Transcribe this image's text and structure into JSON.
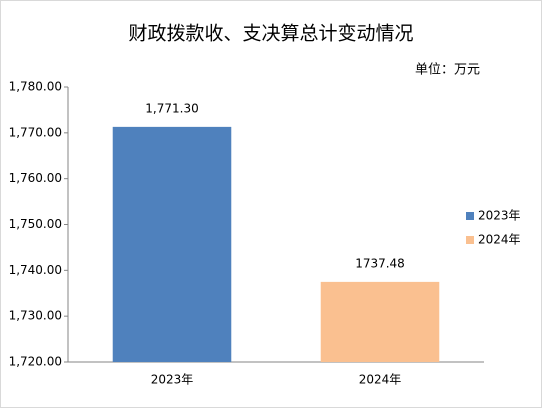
{
  "chart_data": {
    "type": "bar",
    "title": "财政拨款收、支决算总计变动情况",
    "subtitle": "单位：万元",
    "categories": [
      "2023年",
      "2024年"
    ],
    "values": [
      1771.3,
      1737.48
    ],
    "value_labels": [
      "1,771.30",
      "1737.48"
    ],
    "colors": [
      "#4f81bd",
      "#fac090"
    ],
    "ylim": [
      1720,
      1780
    ],
    "yticks": [
      {
        "value": 1720,
        "label": "1,720.00"
      },
      {
        "value": 1730,
        "label": "1,730.00"
      },
      {
        "value": 1740,
        "label": "1,740.00"
      },
      {
        "value": 1750,
        "label": "1,750.00"
      },
      {
        "value": 1760,
        "label": "1,760.00"
      },
      {
        "value": 1770,
        "label": "1,770.00"
      },
      {
        "value": 1780,
        "label": "1,780.00"
      }
    ],
    "grid": false,
    "legend": "right"
  }
}
